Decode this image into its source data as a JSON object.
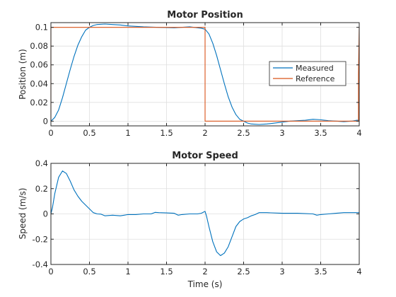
{
  "colors": {
    "measured": "#0072BD",
    "reference": "#D95319",
    "grid": "#dfdfdf",
    "axis": "#262626"
  },
  "chart_data": [
    {
      "type": "line",
      "title": "Motor Position",
      "xlabel": "",
      "ylabel": "Position (m)",
      "xlim": [
        0,
        4
      ],
      "ylim": [
        -0.005,
        0.105
      ],
      "xticks": [
        0,
        0.5,
        1,
        1.5,
        2,
        2.5,
        3,
        3.5,
        4
      ],
      "xtick_labels": [
        "0",
        "0.5",
        "1",
        "1.5",
        "2",
        "2.5",
        "3",
        "3.5",
        "4"
      ],
      "yticks": [
        0,
        0.02,
        0.04,
        0.06,
        0.08,
        0.1
      ],
      "ytick_labels": [
        "0",
        "0.02",
        "0.04",
        "0.06",
        "0.08",
        "0.1"
      ],
      "grid": true,
      "legend": {
        "placement": "right",
        "entries": [
          "Measured",
          "Reference"
        ]
      },
      "series": [
        {
          "name": "Measured",
          "color": "#0072BD",
          "x": [
            0,
            0.05,
            0.1,
            0.15,
            0.2,
            0.25,
            0.3,
            0.35,
            0.4,
            0.45,
            0.5,
            0.55,
            0.6,
            0.7,
            0.8,
            0.9,
            1.0,
            1.2,
            1.4,
            1.6,
            1.8,
            1.95,
            2.0,
            2.05,
            2.1,
            2.15,
            2.2,
            2.25,
            2.3,
            2.35,
            2.4,
            2.45,
            2.5,
            2.55,
            2.6,
            2.7,
            2.8,
            2.9,
            3.0,
            3.1,
            3.2,
            3.3,
            3.4,
            3.5,
            3.6,
            3.7,
            3.8,
            3.9,
            3.97,
            4.0
          ],
          "y": [
            0,
            0.004,
            0.012,
            0.025,
            0.04,
            0.055,
            0.069,
            0.081,
            0.09,
            0.097,
            0.1,
            0.102,
            0.103,
            0.1035,
            0.103,
            0.1025,
            0.1015,
            0.1005,
            0.1,
            0.0995,
            0.1005,
            0.099,
            0.098,
            0.093,
            0.083,
            0.07,
            0.055,
            0.04,
            0.026,
            0.015,
            0.007,
            0.002,
            0,
            -0.002,
            -0.003,
            -0.0035,
            -0.003,
            -0.002,
            -0.001,
            0,
            0.0005,
            0.001,
            0.002,
            0.0015,
            0.0005,
            0,
            -0.0005,
            0,
            0.001,
            0.001
          ]
        },
        {
          "name": "Reference",
          "color": "#D95319",
          "x": [
            0,
            0,
            2,
            2,
            3.99,
            3.99,
            4
          ],
          "y": [
            0,
            0.1,
            0.1,
            0,
            0,
            0.05,
            0.1
          ]
        }
      ]
    },
    {
      "type": "line",
      "title": "Motor Speed",
      "xlabel": "Time (s)",
      "ylabel": "Speed (m/s)",
      "xlim": [
        0,
        4
      ],
      "ylim": [
        -0.4,
        0.4
      ],
      "xticks": [
        0,
        0.5,
        1,
        1.5,
        2,
        2.5,
        3,
        3.5,
        4
      ],
      "xtick_labels": [
        "0",
        "0.5",
        "1",
        "1.5",
        "2",
        "2.5",
        "3",
        "3.5",
        "4"
      ],
      "yticks": [
        -0.4,
        -0.2,
        0,
        0.2,
        0.4
      ],
      "ytick_labels": [
        "-0.4",
        "-0.2",
        "0",
        "0.2",
        "0.4"
      ],
      "grid": true,
      "series": [
        {
          "color": "#0072BD",
          "x": [
            0,
            0.02,
            0.05,
            0.1,
            0.15,
            0.2,
            0.25,
            0.3,
            0.35,
            0.4,
            0.45,
            0.5,
            0.55,
            0.6,
            0.65,
            0.7,
            0.8,
            0.9,
            0.95,
            1.0,
            1.1,
            1.2,
            1.3,
            1.35,
            1.4,
            1.5,
            1.6,
            1.65,
            1.7,
            1.8,
            1.9,
            1.95,
            2.0,
            2.02,
            2.05,
            2.1,
            2.15,
            2.2,
            2.25,
            2.3,
            2.35,
            2.4,
            2.45,
            2.5,
            2.55,
            2.6,
            2.65,
            2.7,
            2.8,
            3.0,
            3.2,
            3.4,
            3.45,
            3.5,
            3.6,
            3.7,
            3.8,
            3.9,
            4.0
          ],
          "y": [
            0,
            0.05,
            0.16,
            0.29,
            0.34,
            0.32,
            0.26,
            0.19,
            0.14,
            0.1,
            0.07,
            0.04,
            0.01,
            0.0,
            -0.002,
            -0.015,
            -0.01,
            -0.015,
            -0.01,
            -0.005,
            -0.005,
            0.0,
            0.0,
            0.012,
            0.01,
            0.008,
            0.005,
            -0.01,
            -0.005,
            0.0,
            0.0,
            0.005,
            0.02,
            -0.02,
            -0.1,
            -0.22,
            -0.3,
            -0.33,
            -0.31,
            -0.26,
            -0.18,
            -0.1,
            -0.06,
            -0.04,
            -0.03,
            -0.015,
            -0.005,
            0.01,
            0.01,
            0.005,
            0.005,
            0.0,
            -0.01,
            -0.005,
            0.0,
            0.005,
            0.01,
            0.01,
            0.01
          ]
        }
      ]
    }
  ]
}
